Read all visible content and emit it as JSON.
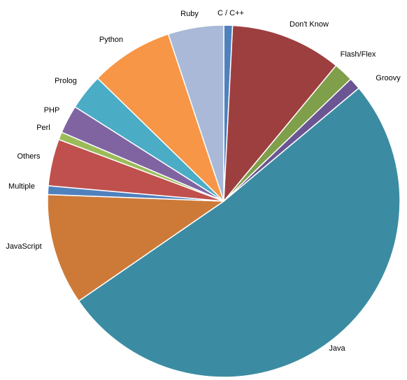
{
  "chart_data": {
    "type": "pie",
    "title": "",
    "start_angle_deg": 0,
    "direction": "clockwise",
    "legend": "none",
    "slices": [
      {
        "label": "C / C++",
        "value": 0.8,
        "color": "#4F81BD"
      },
      {
        "label": "Don't Know",
        "value": 10.2,
        "color": "#9E3F3F"
      },
      {
        "label": "Flash/Flex",
        "value": 1.8,
        "color": "#7F9F4A"
      },
      {
        "label": "Groovy",
        "value": 1.1,
        "color": "#6B5592"
      },
      {
        "label": "Java",
        "value": 51.5,
        "color": "#3B8CA2"
      },
      {
        "label": "JavaScript",
        "value": 10.2,
        "color": "#CD7A38"
      },
      {
        "label": "Multiple",
        "value": 0.8,
        "color": "#4F81BD"
      },
      {
        "label": "Others",
        "value": 4.3,
        "color": "#C0504D"
      },
      {
        "label": "Perl",
        "value": 0.7,
        "color": "#9BBB59"
      },
      {
        "label": "PHP",
        "value": 2.6,
        "color": "#8064A2"
      },
      {
        "label": "Prolog",
        "value": 3.3,
        "color": "#4BACC6"
      },
      {
        "label": "Python",
        "value": 7.6,
        "color": "#F79646"
      },
      {
        "label": "Ruby",
        "value": 5.1,
        "color": "#A9B9D7"
      }
    ]
  }
}
